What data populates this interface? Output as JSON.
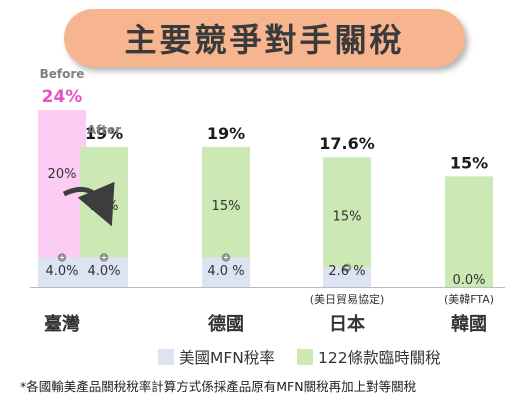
{
  "title": "主要競爭對手關稅",
  "chart_data": {
    "type": "bar",
    "stacked": true,
    "categories": [
      "臺灣",
      "德國",
      "日本",
      "韓國"
    ],
    "category_notes": [
      "",
      "",
      "(美日貿易協定)",
      "(美韓FTA)"
    ],
    "series": [
      {
        "name": "美國MFN稅率",
        "values": [
          4.0,
          4.0,
          2.6,
          0.0
        ],
        "labels": [
          "4.0%",
          "4.0 %",
          "2.6 %",
          "0.0%"
        ]
      },
      {
        "name": "122條款臨時關稅",
        "values": [
          15,
          15,
          15,
          15
        ],
        "labels": [
          "15%",
          "15%",
          "15%",
          ""
        ]
      }
    ],
    "totals": [
      "19%",
      "19%",
      "17.6%",
      "15%"
    ],
    "taiwan_before": {
      "tag": "Before",
      "total": "24%",
      "mfn": 4.0,
      "mfn_label": "4.0%",
      "extra": 20,
      "extra_label": "20%"
    },
    "after_tag": "After",
    "ylim": [
      0,
      24
    ],
    "colors": {
      "mfn": "#dce3f2",
      "tariff": "#cce8b5",
      "before": "#fbcdf2",
      "before_total": "#ea4fc4"
    }
  },
  "legend": {
    "mfn": "美國MFN稅率",
    "tariff": "122條款臨時關稅"
  },
  "footnote": "*各國輸美產品關稅稅率計算方式係採產品原有MFN關稅再加上對等關稅"
}
